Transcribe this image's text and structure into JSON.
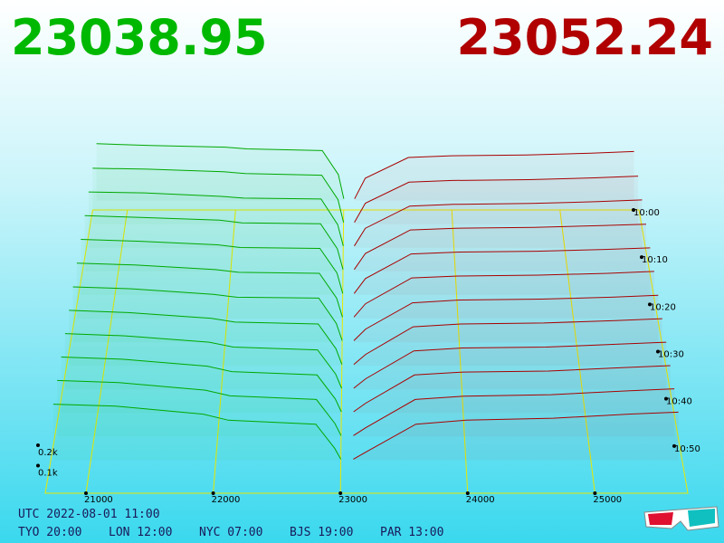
{
  "chart_data": {
    "type": "depth3d",
    "bid_price": "23038.95",
    "ask_price": "23052.24",
    "bid_color": "#00a800",
    "ask_color": "#a80000",
    "floor_color": "#e8e800",
    "xlim": [
      20680,
      25730
    ],
    "xticks": [
      21000,
      22000,
      23000,
      24000,
      25000
    ],
    "tlim": [
      600,
      660
    ],
    "tticks": [
      {
        "value": 600,
        "label": "10:00"
      },
      {
        "value": 610,
        "label": "10:10"
      },
      {
        "value": 620,
        "label": "10:20"
      },
      {
        "value": 630,
        "label": "10:30"
      },
      {
        "value": 640,
        "label": "10:40"
      },
      {
        "value": 650,
        "label": "10:50"
      }
    ],
    "zticks": [
      {
        "value": 100,
        "label": "0.1k"
      },
      {
        "value": 200,
        "label": "0.2k"
      }
    ],
    "bid_prices": [
      20700,
      21200,
      21900,
      22100,
      22800,
      22950,
      23000
    ],
    "ask_prices": [
      23100,
      23200,
      23600,
      24000,
      24700,
      25300,
      25700
    ],
    "snapshots": [
      {
        "time": 598,
        "bids": [
          330,
          320,
          310,
          300,
          290,
          150,
          10
        ],
        "asks": [
          10,
          130,
          250,
          260,
          265,
          275,
          285
        ]
      },
      {
        "time": 603,
        "bids": [
          320,
          315,
          300,
          290,
          280,
          140,
          10
        ],
        "asks": [
          10,
          120,
          240,
          250,
          255,
          265,
          275
        ]
      },
      {
        "time": 608,
        "bids": [
          315,
          310,
          290,
          280,
          275,
          130,
          10
        ],
        "asks": [
          10,
          110,
          235,
          245,
          250,
          260,
          270
        ]
      },
      {
        "time": 613,
        "bids": [
          310,
          300,
          285,
          270,
          265,
          125,
          10
        ],
        "asks": [
          10,
          100,
          230,
          240,
          245,
          255,
          262
        ]
      },
      {
        "time": 618,
        "bids": [
          305,
          295,
          275,
          260,
          255,
          120,
          8
        ],
        "asks": [
          8,
          90,
          225,
          235,
          240,
          250,
          258
        ]
      },
      {
        "time": 623,
        "bids": [
          300,
          290,
          265,
          250,
          245,
          110,
          8
        ],
        "asks": [
          8,
          80,
          220,
          230,
          235,
          245,
          255
        ]
      },
      {
        "time": 628,
        "bids": [
          295,
          285,
          255,
          240,
          235,
          100,
          8
        ],
        "asks": [
          8,
          70,
          210,
          225,
          230,
          240,
          250
        ]
      },
      {
        "time": 633,
        "bids": [
          292,
          280,
          250,
          230,
          220,
          90,
          7
        ],
        "asks": [
          7,
          60,
          205,
          220,
          225,
          238,
          248
        ]
      },
      {
        "time": 638,
        "bids": [
          290,
          278,
          245,
          220,
          205,
          80,
          6
        ],
        "asks": [
          6,
          55,
          200,
          215,
          220,
          235,
          245
        ]
      },
      {
        "time": 643,
        "bids": [
          287,
          276,
          240,
          212,
          195,
          72,
          6
        ],
        "asks": [
          6,
          50,
          195,
          210,
          215,
          232,
          243
        ]
      },
      {
        "time": 648,
        "bids": [
          284,
          273,
          235,
          206,
          188,
          66,
          5
        ],
        "asks": [
          5,
          45,
          188,
          205,
          212,
          231,
          242
        ]
      },
      {
        "time": 653,
        "bids": [
          280,
          270,
          230,
          200,
          180,
          60,
          5
        ],
        "asks": [
          5,
          40,
          180,
          200,
          210,
          230,
          240
        ]
      }
    ],
    "utc": "UTC 2022-08-01 11:00",
    "cities": [
      "TYO 20:00",
      "LON 12:00",
      "NYC 07:00",
      "BJS 19:00",
      "PAR 13:00"
    ]
  }
}
